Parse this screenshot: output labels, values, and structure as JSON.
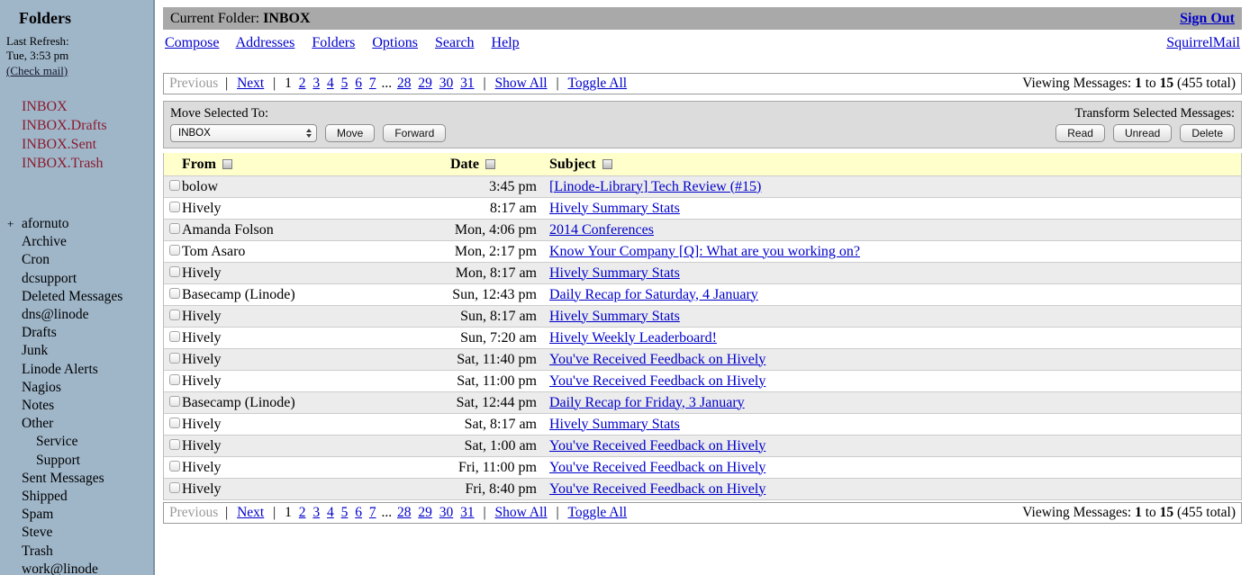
{
  "colors": {
    "accent_link": "#0000cc",
    "sidebar_bg": "#9fb6c9",
    "special_folder": "#8c1b2e",
    "topbar_bg": "#a9a9a9",
    "header_bg": "#ffffcc",
    "row_alt_bg": "#ececec",
    "toolbar_bg": "#dcdcdc",
    "disabled_text": "#9a9a9a"
  },
  "sidebar": {
    "title": "Folders",
    "last_refresh_label": "Last Refresh:",
    "last_refresh_time": "Tue, 3:53 pm",
    "check_mail": "(Check mail)",
    "special_folders": [
      "INBOX",
      "INBOX.Drafts",
      "INBOX.Sent",
      "INBOX.Trash"
    ],
    "folders": [
      {
        "label": "afornuto",
        "prefix": "+",
        "indent": 0
      },
      {
        "label": "Archive",
        "indent": 0
      },
      {
        "label": "Cron",
        "indent": 0
      },
      {
        "label": "dcsupport",
        "indent": 0
      },
      {
        "label": "Deleted Messages",
        "indent": 0
      },
      {
        "label": "dns@linode",
        "indent": 0
      },
      {
        "label": "Drafts",
        "indent": 0
      },
      {
        "label": "Junk",
        "indent": 0
      },
      {
        "label": "Linode Alerts",
        "indent": 0
      },
      {
        "label": "Nagios",
        "indent": 0
      },
      {
        "label": "Notes",
        "indent": 0
      },
      {
        "label": "Other",
        "indent": 0
      },
      {
        "label": "Service",
        "indent": 1
      },
      {
        "label": "Support",
        "indent": 1
      },
      {
        "label": "Sent Messages",
        "indent": 0
      },
      {
        "label": "Shipped",
        "indent": 0
      },
      {
        "label": "Spam",
        "indent": 0
      },
      {
        "label": "Steve",
        "indent": 0
      },
      {
        "label": "Trash",
        "indent": 0
      },
      {
        "label": "work@linode",
        "indent": 0
      }
    ]
  },
  "header": {
    "current_folder_label": "Current Folder:",
    "current_folder": "INBOX",
    "sign_out": "Sign Out",
    "menu": [
      "Compose",
      "Addresses",
      "Folders",
      "Options",
      "Search",
      "Help"
    ],
    "brand": "SquirrelMail"
  },
  "pagination": {
    "previous": "Previous",
    "next": "Next",
    "sep": "|",
    "current_page": "1",
    "pages_start": [
      "2",
      "3",
      "4",
      "5",
      "6",
      "7"
    ],
    "ellipsis": "...",
    "pages_end": [
      "28",
      "29",
      "30",
      "31"
    ],
    "show_all": "Show All",
    "toggle_all": "Toggle All",
    "viewing": {
      "label": "Viewing Messages:",
      "range_from": "1",
      "word_to": "to",
      "range_to": "15",
      "total": "(455 total)"
    }
  },
  "toolbar": {
    "move_label": "Move Selected To:",
    "select_value": "INBOX",
    "move_button": "Move",
    "forward_button": "Forward",
    "transform_label": "Transform Selected Messages:",
    "read_button": "Read",
    "unread_button": "Unread",
    "delete_button": "Delete"
  },
  "table": {
    "headers": {
      "from": "From",
      "date": "Date",
      "subject": "Subject"
    },
    "rows": [
      {
        "from": "bolow",
        "date": "3:45 pm",
        "subject": "[Linode-Library] Tech Review (#15)"
      },
      {
        "from": "Hively",
        "date": "8:17 am",
        "subject": "Hively Summary Stats"
      },
      {
        "from": "Amanda Folson",
        "date": "Mon, 4:06 pm",
        "subject": "2014 Conferences"
      },
      {
        "from": "Tom Asaro",
        "date": "Mon, 2:17 pm",
        "subject": "Know Your Company [Q]: What are you working on?"
      },
      {
        "from": "Hively",
        "date": "Mon, 8:17 am",
        "subject": "Hively Summary Stats"
      },
      {
        "from": "Basecamp (Linode)",
        "date": "Sun, 12:43 pm",
        "subject": "Daily Recap for Saturday, 4 January"
      },
      {
        "from": "Hively",
        "date": "Sun, 8:17 am",
        "subject": "Hively Summary Stats"
      },
      {
        "from": "Hively",
        "date": "Sun, 7:20 am",
        "subject": "Hively Weekly Leaderboard!"
      },
      {
        "from": "Hively",
        "date": "Sat, 11:40 pm",
        "subject": "You've Received Feedback on Hively"
      },
      {
        "from": "Hively",
        "date": "Sat, 11:00 pm",
        "subject": "You've Received Feedback on Hively"
      },
      {
        "from": "Basecamp (Linode)",
        "date": "Sat, 12:44 pm",
        "subject": "Daily Recap for Friday, 3 January"
      },
      {
        "from": "Hively",
        "date": "Sat, 8:17 am",
        "subject": "Hively Summary Stats"
      },
      {
        "from": "Hively",
        "date": "Sat, 1:00 am",
        "subject": "You've Received Feedback on Hively"
      },
      {
        "from": "Hively",
        "date": "Fri, 11:00 pm",
        "subject": "You've Received Feedback on Hively"
      },
      {
        "from": "Hively",
        "date": "Fri, 8:40 pm",
        "subject": "You've Received Feedback on Hively"
      }
    ]
  }
}
